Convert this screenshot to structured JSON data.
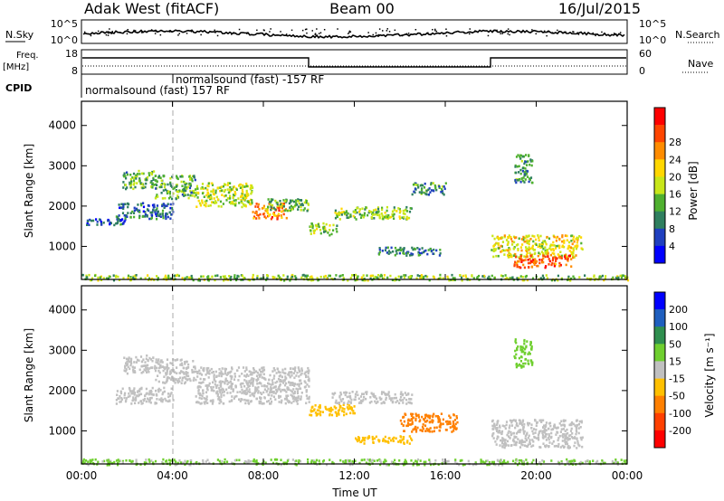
{
  "header": {
    "station": "Adak West (fitACF)",
    "beam": "Beam 00",
    "date": "16/Jul/2015"
  },
  "noise_panel": {
    "left_label": "N.Sky",
    "right_label": "N.Search",
    "left_ticks": [
      "10^5",
      "10^0"
    ],
    "right_ticks": [
      "10^5",
      "10^0"
    ]
  },
  "freq_panel": {
    "left_label_line1": "Freq.",
    "left_label_line2": "[MHz]",
    "left_ticks": [
      "18",
      "8"
    ],
    "right_label": "Nave",
    "right_ticks": [
      "60",
      "0"
    ]
  },
  "cpid": {
    "label": "CPID",
    "programs": [
      {
        "name": "normalsound (fast) 157 RF",
        "start_hour": 0
      },
      {
        "name": "normalsound (fast) -157 RF",
        "start_hour": 4
      }
    ]
  },
  "colors": {
    "power_scale": [
      "#0000ff",
      "#1f3fbf",
      "#2f7f5f",
      "#4fb02f",
      "#c8e619",
      "#ffd700",
      "#ff8c00",
      "#ff4500",
      "#ff0000"
    ],
    "velocity_scale": [
      "#0000ff",
      "#1f5fbf",
      "#2f8f4f",
      "#6fcf2f",
      "#c0c0c0",
      "#ffc000",
      "#ff8000",
      "#ff4000",
      "#ff0000"
    ]
  },
  "chart_data": [
    {
      "type": "heatmap",
      "title": "Power",
      "ylabel": "Slant Range [km]",
      "xlabel": "Time UT",
      "x_tick_labels": [
        "00:00",
        "04:00",
        "08:00",
        "12:00",
        "16:00",
        "20:00",
        "00:00"
      ],
      "x_ticks_hours": [
        0,
        4,
        8,
        12,
        16,
        20,
        24
      ],
      "xlim_hours": [
        0,
        24
      ],
      "ylim": [
        180,
        4600
      ],
      "y_ticks": [
        1000,
        2000,
        3000,
        4000
      ],
      "colorbar": {
        "label": "Power [dB]",
        "ticks": [
          "4",
          "8",
          "12",
          "16",
          "20",
          "24",
          "28"
        ],
        "range": [
          0,
          32
        ]
      },
      "echo_regions": [
        {
          "t": [
            1.8,
            3.2
          ],
          "r": [
            2450,
            2900
          ],
          "value": 12
        },
        {
          "t": [
            0.0,
            1.9
          ],
          "r": [
            1550,
            1700
          ],
          "value": 6
        },
        {
          "t": [
            1.5,
            4.0
          ],
          "r": [
            1700,
            2100
          ],
          "value": 8
        },
        {
          "t": [
            3.2,
            5.0
          ],
          "r": [
            2200,
            2800
          ],
          "value": 12
        },
        {
          "t": [
            5.0,
            7.5
          ],
          "r": [
            2000,
            2600
          ],
          "value": 16
        },
        {
          "t": [
            7.5,
            9.0
          ],
          "r": [
            1700,
            2100
          ],
          "value": 24
        },
        {
          "t": [
            8.0,
            10.0
          ],
          "r": [
            1900,
            2200
          ],
          "value": 12
        },
        {
          "t": [
            10.0,
            11.2
          ],
          "r": [
            1300,
            1600
          ],
          "value": 14
        },
        {
          "t": [
            11.0,
            14.5
          ],
          "r": [
            1700,
            2000
          ],
          "value": 14
        },
        {
          "t": [
            14.5,
            16.0
          ],
          "r": [
            2300,
            2600
          ],
          "value": 10
        },
        {
          "t": [
            13.0,
            15.8
          ],
          "r": [
            800,
            1000
          ],
          "value": 8
        },
        {
          "t": [
            18.0,
            22.0
          ],
          "r": [
            750,
            1300
          ],
          "value": 18
        },
        {
          "t": [
            19.0,
            21.5
          ],
          "r": [
            500,
            800
          ],
          "value": 26
        },
        {
          "t": [
            19.0,
            19.8
          ],
          "r": [
            2600,
            3300
          ],
          "value": 10
        },
        {
          "t": [
            0.0,
            24.0
          ],
          "r": [
            180,
            320
          ],
          "value": 14
        }
      ]
    },
    {
      "type": "heatmap",
      "title": "Velocity",
      "ylabel": "Slant Range [km]",
      "xlabel": "Time UT",
      "x_tick_labels": [
        "00:00",
        "04:00",
        "08:00",
        "12:00",
        "16:00",
        "20:00",
        "00:00"
      ],
      "x_ticks_hours": [
        0,
        4,
        8,
        12,
        16,
        20,
        24
      ],
      "xlim_hours": [
        0,
        24
      ],
      "ylim": [
        180,
        4600
      ],
      "y_ticks": [
        1000,
        2000,
        3000,
        4000
      ],
      "colorbar": {
        "label": "Velocity [m s⁻¹]",
        "ticks": [
          "200",
          "100",
          "50",
          "15",
          "-15",
          "-50",
          "-100",
          "-200"
        ],
        "range": [
          -250,
          250
        ]
      },
      "echo_regions": [
        {
          "t": [
            1.8,
            3.2
          ],
          "r": [
            2450,
            2900
          ],
          "value": 0
        },
        {
          "t": [
            1.5,
            4.0
          ],
          "r": [
            1700,
            2100
          ],
          "value": 0
        },
        {
          "t": [
            3.2,
            5.0
          ],
          "r": [
            2200,
            2800
          ],
          "value": 0
        },
        {
          "t": [
            5.0,
            10.0
          ],
          "r": [
            1700,
            2600
          ],
          "value": 0
        },
        {
          "t": [
            10.0,
            12.0
          ],
          "r": [
            1400,
            1700
          ],
          "value": -60
        },
        {
          "t": [
            11.0,
            14.5
          ],
          "r": [
            1700,
            2000
          ],
          "value": 0
        },
        {
          "t": [
            14.0,
            16.5
          ],
          "r": [
            1000,
            1450
          ],
          "value": -90
        },
        {
          "t": [
            12.0,
            14.5
          ],
          "r": [
            700,
            900
          ],
          "value": -60
        },
        {
          "t": [
            18.0,
            22.0
          ],
          "r": [
            600,
            1300
          ],
          "value": 0
        },
        {
          "t": [
            19.0,
            19.8
          ],
          "r": [
            2600,
            3300
          ],
          "value": 40
        },
        {
          "t": [
            0.0,
            24.0
          ],
          "r": [
            180,
            320
          ],
          "value": 30
        }
      ]
    }
  ]
}
